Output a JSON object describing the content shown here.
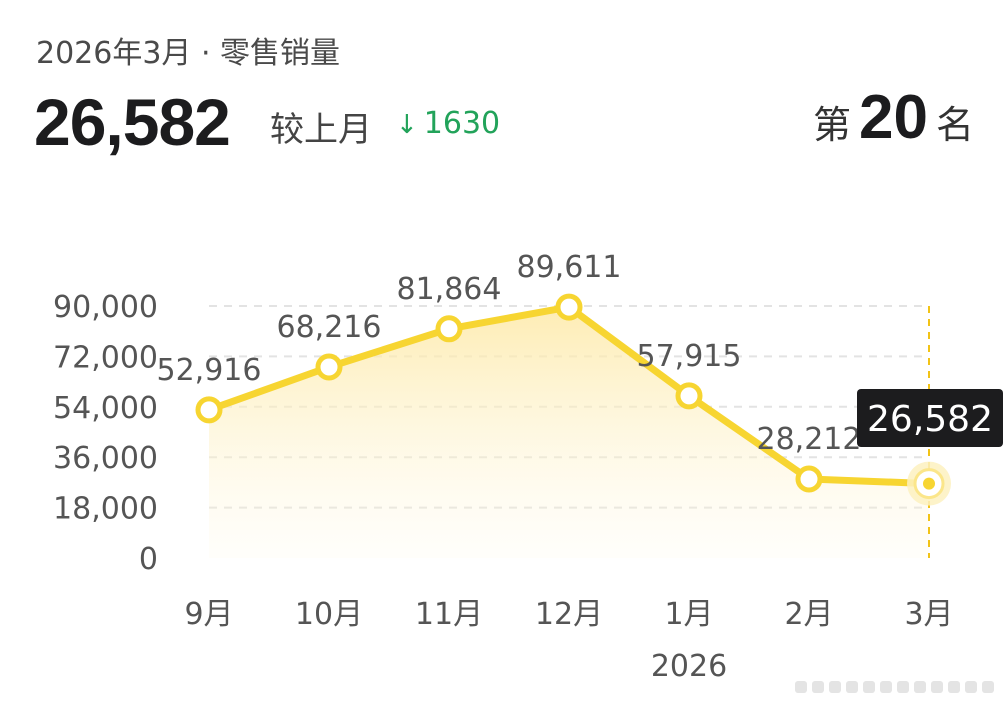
{
  "header": {
    "subtitle": "2026年3月 · 零售销量",
    "value": "26,582",
    "compare_label": "较上月",
    "delta_arrow": "↓",
    "delta_value": "1630",
    "rank_prefix": "第",
    "rank_number": "20",
    "rank_suffix": "名"
  },
  "colors": {
    "line": "#f7d531",
    "area": "#fde9a6",
    "grid": "#e3e3e3",
    "delta": "#22a35a",
    "tooltip_bg": "#1c1c1e"
  },
  "chart_data": {
    "type": "line",
    "categories": [
      "9月",
      "10月",
      "11月",
      "12月",
      "1月",
      "2月",
      "3月"
    ],
    "year_label": "2026",
    "year_label_under": "1月",
    "values": [
      52916,
      68216,
      81864,
      89611,
      57915,
      28212,
      26582
    ],
    "value_labels": [
      "52,916",
      "68,216",
      "81,864",
      "89,611",
      "57,915",
      "28,212",
      "26,582"
    ],
    "ylim": [
      0,
      90000
    ],
    "yticks": [
      0,
      18000,
      36000,
      54000,
      72000,
      90000
    ],
    "ytick_labels": [
      "0",
      "18,000",
      "36,000",
      "54,000",
      "72,000",
      "90,000"
    ],
    "highlight_index": 6,
    "tooltip": "26,582",
    "grid": true,
    "title": "",
    "xlabel": "",
    "ylabel": ""
  }
}
